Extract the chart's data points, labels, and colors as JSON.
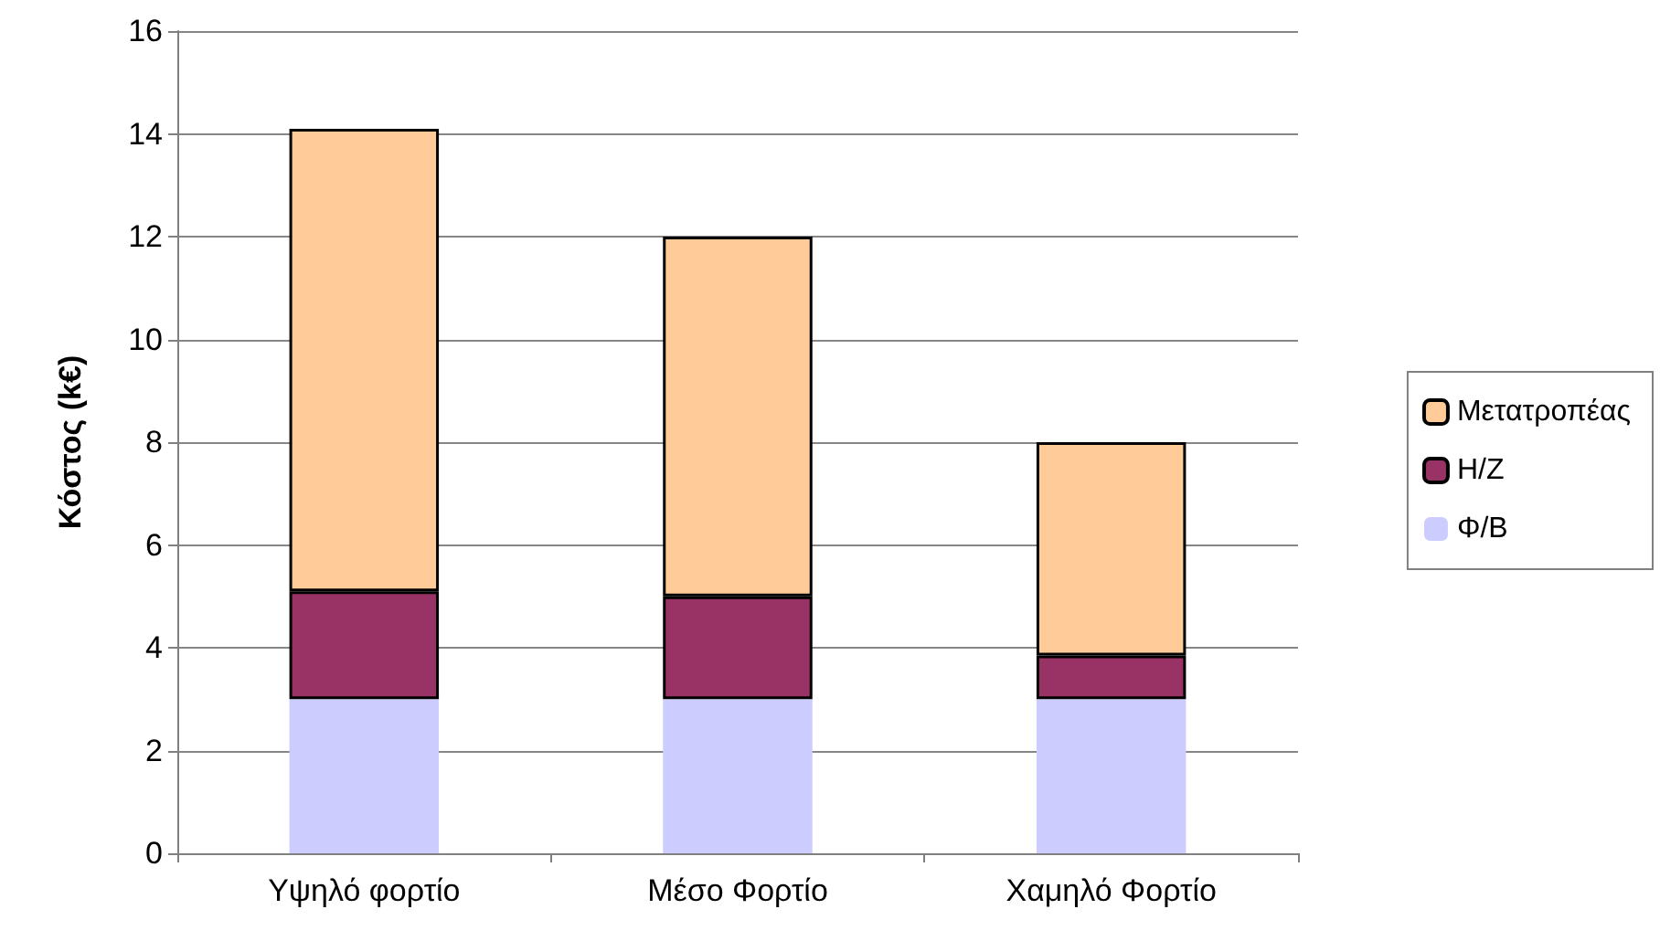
{
  "chart_data": {
    "type": "bar",
    "stacked": true,
    "ylabel": "Κόστος (k€)",
    "categories": [
      "Υψηλό φορτίο",
      "Μέσο Φορτίο",
      "Χαμηλό Φορτίο"
    ],
    "series": [
      {
        "name": "Φ/Β",
        "color": "#ccccff",
        "values": [
          3,
          3,
          3
        ]
      },
      {
        "name": "Η/Ζ",
        "color": "#993366",
        "values": [
          2.1,
          2,
          0.85
        ]
      },
      {
        "name": "Μετατροπέας",
        "color": "#ffcc99",
        "values": [
          9,
          7,
          4.15
        ]
      }
    ],
    "ylim": [
      0,
      16
    ],
    "yticks": [
      0,
      2,
      4,
      6,
      8,
      10,
      12,
      14,
      16
    ],
    "grid": "y",
    "legend": "right"
  }
}
